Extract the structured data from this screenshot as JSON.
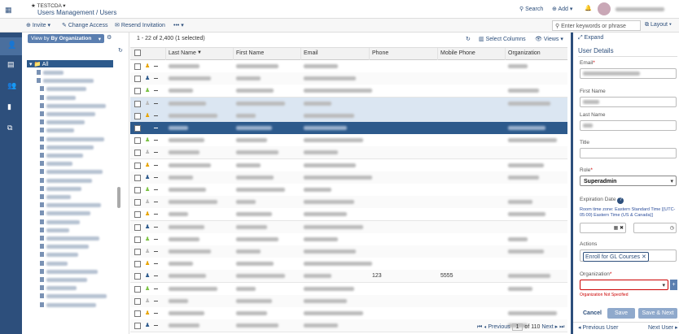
{
  "header": {
    "org": "TESTCDA",
    "breadcrumb": "Users Management / Users",
    "search": "Search",
    "add": "Add"
  },
  "toolbar": {
    "invite": "Invite",
    "change_access": "Change Access",
    "resend": "Resend Invitation",
    "more": "•••",
    "search_placeholder": "Enter keywords or phrase",
    "layout": "Layout"
  },
  "tree": {
    "view_by": "View by",
    "view_by_value": "By Organization",
    "root": "All"
  },
  "table": {
    "summary": "1 - 22 of 2,400 (1 selected)",
    "select_columns": "Select Columns",
    "views": "Views",
    "columns": [
      "Last Name",
      "First Name",
      "Email",
      "Phone",
      "Mobile Phone",
      "Organization"
    ],
    "rows": [
      {
        "cells": [
          null,
          null,
          null,
          null,
          null,
          null
        ]
      },
      {
        "cells": [
          null,
          null,
          null,
          null,
          null,
          null
        ]
      },
      {
        "cells": [
          null,
          null,
          null,
          null,
          null,
          null
        ]
      },
      {
        "cells": [
          null,
          null,
          null,
          null,
          null,
          null
        ]
      },
      {
        "cells": [
          null,
          null,
          null,
          null,
          null,
          null
        ]
      },
      {
        "cells": [
          null,
          null,
          null,
          null,
          null,
          null
        ],
        "selected": true
      },
      {
        "cells": [
          null,
          null,
          null,
          null,
          null,
          null
        ]
      },
      {
        "cells": [
          null,
          null,
          null,
          null,
          null,
          null
        ]
      },
      {
        "cells": [
          null,
          null,
          null,
          null,
          null,
          null
        ]
      },
      {
        "cells": [
          null,
          null,
          null,
          null,
          null,
          null
        ]
      },
      {
        "cells": [
          null,
          null,
          null,
          null,
          null,
          null
        ]
      },
      {
        "cells": [
          null,
          null,
          null,
          null,
          null,
          null
        ]
      },
      {
        "cells": [
          null,
          null,
          null,
          null,
          null,
          null
        ]
      },
      {
        "cells": [
          null,
          null,
          null,
          null,
          null,
          null
        ]
      },
      {
        "cells": [
          null,
          null,
          null,
          null,
          null,
          null
        ]
      },
      {
        "cells": [
          null,
          null,
          null,
          null,
          null,
          null
        ]
      },
      {
        "cells": [
          null,
          null,
          null,
          null,
          null,
          null
        ]
      },
      {
        "cells": [
          null,
          null,
          null,
          "123",
          "5555",
          null
        ]
      },
      {
        "cells": [
          null,
          null,
          null,
          null,
          null,
          null
        ]
      },
      {
        "cells": [
          null,
          null,
          null,
          null,
          null,
          null
        ]
      },
      {
        "cells": [
          null,
          null,
          null,
          null,
          null,
          null
        ]
      },
      {
        "cells": [
          null,
          null,
          null,
          null,
          null,
          null
        ]
      }
    ]
  },
  "pagination": {
    "previous": "Previous",
    "page": "1",
    "of": "of 110",
    "next": "Next"
  },
  "details": {
    "expand": "Expand",
    "title": "User Details",
    "email": "Email",
    "first_name": "First Name",
    "last_name": "Last Name",
    "job_title": "Title",
    "role": "Role",
    "role_value": "Superadmin",
    "expiration": "Expiration Date",
    "timezone": "Room time zone: Eastern Standard Time [(UTC-05:00) Eastern Time (US & Canada)]",
    "actions": "Actions",
    "action_tag": "Enroll for GL Courses",
    "organization": "Organization",
    "org_error": "Organization Not Specified",
    "cancel": "Cancel",
    "save": "Save",
    "save_next": "Save & Next",
    "prev_user": "Previous User",
    "next_user": "Next User"
  }
}
